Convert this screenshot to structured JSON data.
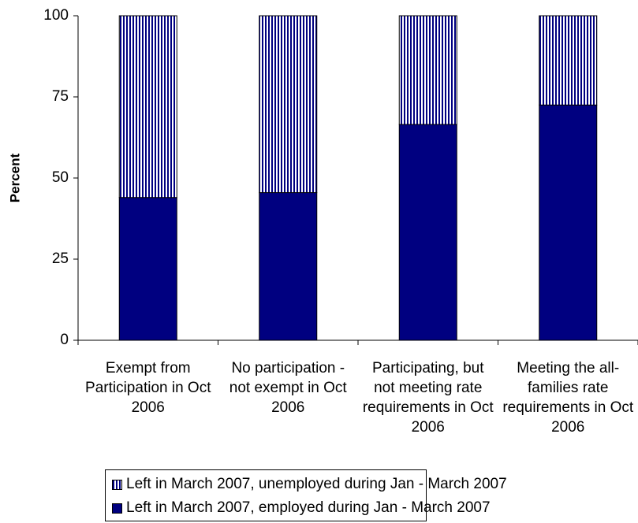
{
  "chart_data": {
    "type": "stacked-bar",
    "y_label": "Percent",
    "categories": [
      "Exempt from Participation in Oct 2006",
      "No participation - not exempt in Oct 2006",
      "Participating, but not meeting rate requirements in Oct 2006",
      "Meeting the all-families rate requirements in Oct 2006"
    ],
    "series": [
      {
        "name": "Left in March 2007, employed during Jan - March 2007",
        "color": "#000080",
        "values": [
          44,
          45.5,
          66.5,
          72.5
        ]
      },
      {
        "name": "Left in March 2007, unemployed during Jan - March 2007",
        "color": "#000080",
        "hatch": "vertical",
        "values": [
          56,
          54.5,
          33.5,
          27.5
        ]
      }
    ],
    "ylim": [
      0,
      100
    ],
    "yticks": [
      0,
      25,
      50,
      75,
      100
    ],
    "grid": false
  }
}
